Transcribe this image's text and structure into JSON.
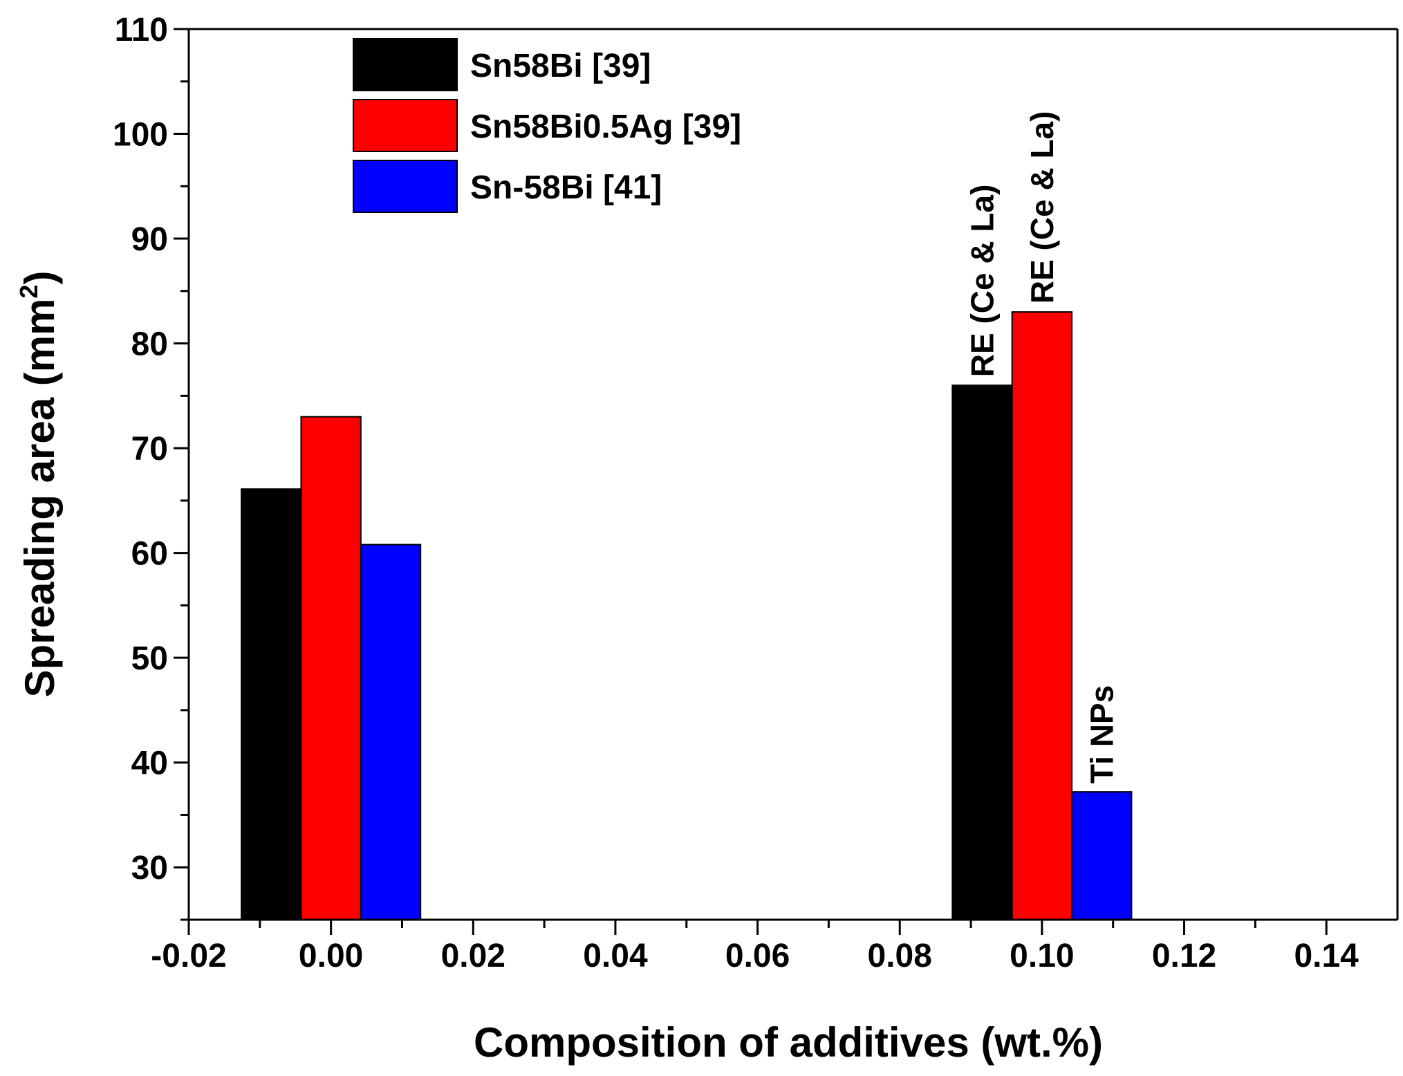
{
  "chart_data": {
    "type": "bar",
    "title": "",
    "xlabel": "Composition of additives (wt.%)",
    "ylabel": {
      "base": "Spreading area (mm",
      "sup": "2",
      "end": ")"
    },
    "xlim": [
      -0.02,
      0.15
    ],
    "ylim": [
      25,
      110
    ],
    "x_ticks": [
      -0.02,
      0.0,
      0.02,
      0.04,
      0.06,
      0.08,
      0.1,
      0.12,
      0.14
    ],
    "x_tick_labels": [
      "-0.02",
      "0.00",
      "0.02",
      "0.04",
      "0.06",
      "0.08",
      "0.10",
      "0.12",
      "0.14"
    ],
    "y_ticks": [
      30,
      40,
      50,
      60,
      70,
      80,
      90,
      100,
      110
    ],
    "y_tick_labels": [
      "30",
      "40",
      "50",
      "60",
      "70",
      "80",
      "90",
      "100",
      "110"
    ],
    "bar_width": 0.0084,
    "legend_position": "top-left",
    "grid": false,
    "series": [
      {
        "name": "Sn58Bi [39]",
        "color": "#000000",
        "points": [
          {
            "x": -0.0084,
            "value": 66.1
          },
          {
            "x": 0.0916,
            "value": 76.0
          }
        ]
      },
      {
        "name": "Sn58Bi0.5Ag [39]",
        "color": "#ff0000",
        "points": [
          {
            "x": 0.0,
            "value": 73.0
          },
          {
            "x": 0.1,
            "value": 83.0
          }
        ]
      },
      {
        "name": "Sn-58Bi [41]",
        "color": "#0000ff",
        "points": [
          {
            "x": 0.0084,
            "value": 60.8
          },
          {
            "x": 0.1084,
            "value": 37.2
          }
        ]
      }
    ],
    "annotations": [
      {
        "text": "RE (Ce & La)",
        "series": 0,
        "point": 1
      },
      {
        "text": "RE (Ce & La)",
        "series": 1,
        "point": 1
      },
      {
        "text": "Ti NPs",
        "series": 2,
        "point": 1
      }
    ]
  }
}
